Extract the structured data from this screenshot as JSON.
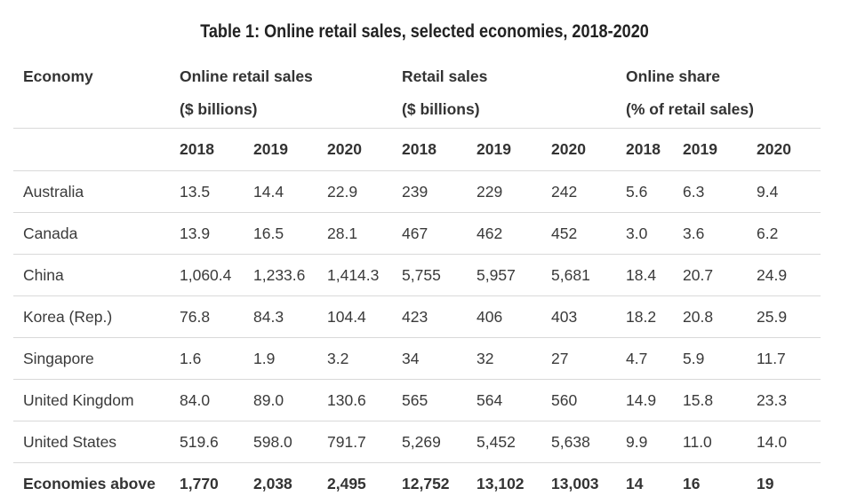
{
  "title": "Table 1: Online retail sales, selected economies, 2018-2020",
  "header": {
    "economy": "Economy",
    "groups": [
      {
        "line1": "Online retail sales",
        "line2": "($ billions)"
      },
      {
        "line1": "Retail sales",
        "line2": "($ billions)"
      },
      {
        "line1": "Online share",
        "line2": "(% of retail sales)"
      }
    ]
  },
  "years": [
    "2018",
    "2019",
    "2020",
    "2018",
    "2019",
    "2020",
    "2018",
    "2019",
    "2020"
  ],
  "rows": [
    {
      "economy": "Australia",
      "values": [
        "13.5",
        "14.4",
        "22.9",
        "239",
        "229",
        "242",
        "5.6",
        "6.3",
        "9.4"
      ]
    },
    {
      "economy": "Canada",
      "values": [
        "13.9",
        "16.5",
        "28.1",
        "467",
        "462",
        "452",
        "3.0",
        "3.6",
        "6.2"
      ]
    },
    {
      "economy": "China",
      "values": [
        "1,060.4",
        "1,233.6",
        "1,414.3",
        "5,755",
        "5,957",
        "5,681",
        "18.4",
        "20.7",
        "24.9"
      ]
    },
    {
      "economy": "Korea (Rep.)",
      "values": [
        "76.8",
        "84.3",
        "104.4",
        "423",
        "406",
        "403",
        "18.2",
        "20.8",
        "25.9"
      ]
    },
    {
      "economy": "Singapore",
      "values": [
        "1.6",
        "1.9",
        "3.2",
        "34",
        "32",
        "27",
        "4.7",
        "5.9",
        "11.7"
      ]
    },
    {
      "economy": "United Kingdom",
      "values": [
        "84.0",
        "89.0",
        "130.6",
        "565",
        "564",
        "560",
        "14.9",
        "15.8",
        "23.3"
      ]
    },
    {
      "economy": "United States",
      "values": [
        "519.6",
        "598.0",
        "791.7",
        "5,269",
        "5,452",
        "5,638",
        "9.9",
        "11.0",
        "14.0"
      ]
    }
  ],
  "total": {
    "economy": "Economies above",
    "values": [
      "1,770",
      "2,038",
      "2,495",
      "12,752",
      "13,102",
      "13,003",
      "14",
      "16",
      "19"
    ]
  }
}
